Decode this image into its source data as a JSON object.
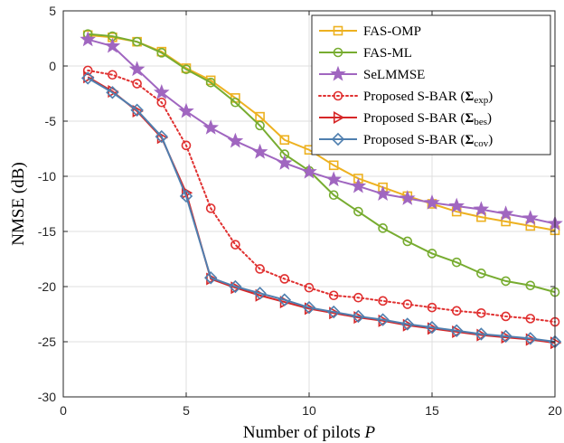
{
  "chart_data": {
    "type": "line",
    "xlabel": "Number of pilots P",
    "ylabel": "NMSE (dB)",
    "xlim": [
      0,
      20
    ],
    "ylim": [
      -30,
      5
    ],
    "xticks": [
      0,
      5,
      10,
      15,
      20
    ],
    "yticks": [
      5,
      0,
      -5,
      -10,
      -15,
      -20,
      -25,
      -30
    ],
    "grid": true,
    "legend_position": "top-right",
    "x": [
      1,
      2,
      3,
      4,
      5,
      6,
      7,
      8,
      9,
      10,
      11,
      12,
      13,
      14,
      15,
      16,
      17,
      18,
      19,
      20
    ],
    "series": [
      {
        "name": "FAS-OMP",
        "color": "#EDB120",
        "marker": "square",
        "dash": "solid",
        "values": [
          2.8,
          2.6,
          2.2,
          1.3,
          -0.2,
          -1.3,
          -2.9,
          -4.6,
          -6.7,
          -7.6,
          -9.0,
          -10.2,
          -11.0,
          -11.8,
          -12.5,
          -13.2,
          -13.7,
          -14.1,
          -14.5,
          -14.9
        ]
      },
      {
        "name": "FAS-ML",
        "color": "#77AC30",
        "marker": "circle",
        "dash": "solid",
        "values": [
          2.9,
          2.7,
          2.2,
          1.2,
          -0.3,
          -1.5,
          -3.3,
          -5.4,
          -8.0,
          -9.5,
          -11.7,
          -13.2,
          -14.7,
          -15.9,
          -17.0,
          -17.8,
          -18.8,
          -19.5,
          -19.9,
          -20.5
        ]
      },
      {
        "name": "SeLMMSE",
        "color": "#A066C0",
        "marker": "star",
        "dash": "solid",
        "values": [
          2.4,
          1.8,
          -0.3,
          -2.4,
          -4.1,
          -5.6,
          -6.8,
          -7.8,
          -8.8,
          -9.6,
          -10.3,
          -10.9,
          -11.6,
          -12.0,
          -12.4,
          -12.7,
          -13.0,
          -13.4,
          -13.8,
          -14.3
        ]
      },
      {
        "name": "Proposed S-BAR (Σexp)",
        "label_base": "Proposed S-BAR (",
        "label_sym": "Σ",
        "label_sub": "exp",
        "label_end": ")",
        "color": "#E03030",
        "marker": "circle",
        "dash": "dotted",
        "values": [
          -0.4,
          -0.8,
          -1.6,
          -3.3,
          -7.2,
          -12.9,
          -16.2,
          -18.4,
          -19.3,
          -20.1,
          -20.8,
          -21.0,
          -21.3,
          -21.6,
          -21.9,
          -22.2,
          -22.4,
          -22.7,
          -22.9,
          -23.2
        ]
      },
      {
        "name": "Proposed S-BAR (Σbes)",
        "label_base": "Proposed S-BAR (",
        "label_sym": "Σ",
        "label_sub": "bes",
        "label_end": ")",
        "color": "#D62728",
        "marker": "triangle-right",
        "dash": "solid",
        "values": [
          -1.0,
          -2.3,
          -4.1,
          -6.5,
          -11.5,
          -19.3,
          -20.1,
          -20.8,
          -21.4,
          -22.0,
          -22.4,
          -22.8,
          -23.1,
          -23.5,
          -23.8,
          -24.1,
          -24.4,
          -24.6,
          -24.8,
          -25.1
        ]
      },
      {
        "name": "Proposed S-BAR (Σcov)",
        "label_base": "Proposed S-BAR (",
        "label_sym": "Σ",
        "label_sub": "cov",
        "label_end": ")",
        "color": "#4F7FAF",
        "marker": "diamond",
        "dash": "solid",
        "values": [
          -1.1,
          -2.4,
          -4.0,
          -6.4,
          -11.8,
          -19.2,
          -20.0,
          -20.6,
          -21.2,
          -21.9,
          -22.3,
          -22.7,
          -23.0,
          -23.4,
          -23.7,
          -24.0,
          -24.3,
          -24.5,
          -24.7,
          -25.0
        ]
      }
    ]
  }
}
